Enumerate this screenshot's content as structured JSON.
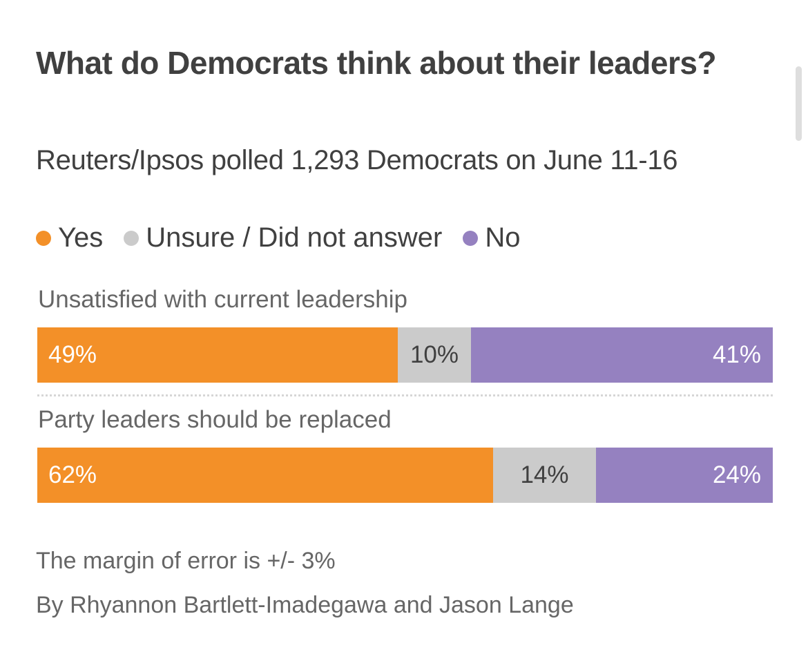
{
  "chart_data": {
    "type": "bar",
    "stacked": true,
    "orientation": "horizontal",
    "title": "What do Democrats think about their leaders?",
    "subtitle": "Reuters/Ipsos polled 1,293 Democrats on June 11-16",
    "legend_position": "top-left",
    "categories": [
      "Unsatisfied with current leadership",
      "Party leaders should be replaced"
    ],
    "series": [
      {
        "name": "Yes",
        "color": "#f39028",
        "values": [
          49,
          62
        ],
        "labels": [
          "49%",
          "62%"
        ]
      },
      {
        "name": "Unsure / Did not answer",
        "color": "#cbcbcb",
        "values": [
          10,
          14
        ],
        "labels": [
          "10%",
          "14%"
        ]
      },
      {
        "name": "No",
        "color": "#9581c0",
        "values": [
          41,
          24
        ],
        "labels": [
          "41%",
          "24%"
        ]
      }
    ],
    "xlim": [
      0,
      100
    ],
    "unit": "%",
    "grid": false
  },
  "footer": {
    "margin_note": "The margin of error is +/- 3%",
    "byline": "By Rhyannon Bartlett-Imadegawa and Jason Lange"
  }
}
